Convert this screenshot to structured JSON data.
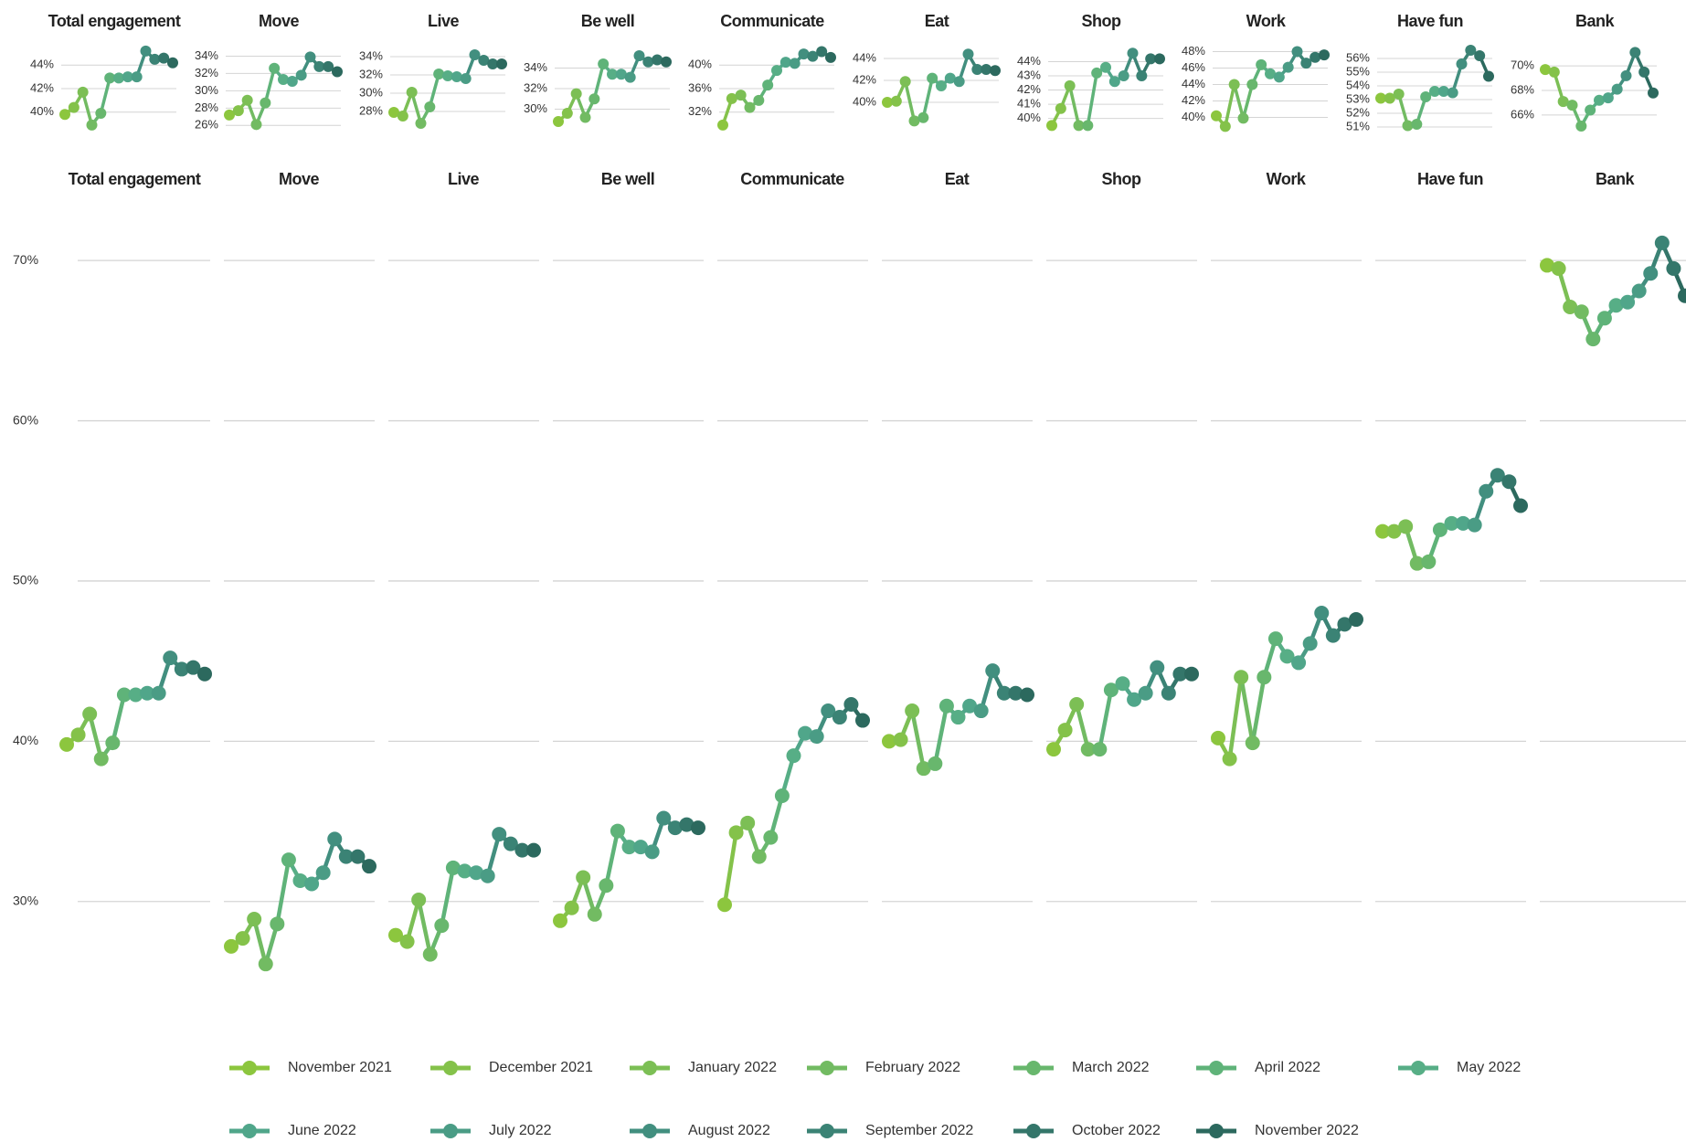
{
  "chart_data": {
    "type": "line",
    "categories": [
      "November 2021",
      "December 2021",
      "January 2022",
      "February 2022",
      "March 2022",
      "April 2022",
      "May 2022",
      "June 2022",
      "July 2022",
      "August 2022",
      "September 2022",
      "October 2022",
      "November 2022"
    ],
    "colors": [
      "#8cc63e",
      "#84c24a",
      "#7cbf55",
      "#72bb62",
      "#68b76d",
      "#5fb379",
      "#57ae86",
      "#50a68a",
      "#4a9c85",
      "#428f7f",
      "#3b8375",
      "#34766a",
      "#2c695e"
    ],
    "ylim": [
      24,
      74
    ],
    "yticks": [
      {
        "value": 30,
        "label": "30%"
      },
      {
        "value": 40,
        "label": "40%"
      },
      {
        "value": 50,
        "label": "50%"
      },
      {
        "value": 60,
        "label": "60%"
      },
      {
        "value": 70,
        "label": "70%"
      }
    ],
    "grid": true,
    "panels": [
      {
        "name": "Total engagement",
        "values": [
          39.8,
          40.4,
          41.7,
          38.9,
          39.9,
          42.9,
          42.9,
          43.0,
          43.0,
          45.2,
          44.5,
          44.6,
          44.2
        ],
        "ylim": [
          38.5,
          45.5
        ],
        "yticks": [
          {
            "value": 40,
            "label": "40%"
          },
          {
            "value": 42,
            "label": "42%"
          },
          {
            "value": 44,
            "label": "44%"
          }
        ]
      },
      {
        "name": "Move",
        "values": [
          27.2,
          27.7,
          28.9,
          26.1,
          28.6,
          32.6,
          31.3,
          31.1,
          31.8,
          33.9,
          32.8,
          32.8,
          32.2
        ],
        "ylim": [
          25.5,
          35
        ],
        "yticks": [
          {
            "value": 26,
            "label": "26%"
          },
          {
            "value": 28,
            "label": "28%"
          },
          {
            "value": 30,
            "label": "30%"
          },
          {
            "value": 32,
            "label": "32%"
          },
          {
            "value": 34,
            "label": "34%"
          }
        ]
      },
      {
        "name": "Live",
        "values": [
          27.9,
          27.5,
          30.1,
          26.7,
          28.5,
          32.1,
          31.9,
          31.8,
          31.6,
          34.2,
          33.6,
          33.2,
          33.2
        ],
        "ylim": [
          26,
          35
        ],
        "yticks": [
          {
            "value": 28,
            "label": "28%"
          },
          {
            "value": 30,
            "label": "30%"
          },
          {
            "value": 32,
            "label": "32%"
          },
          {
            "value": 34,
            "label": "34%"
          }
        ]
      },
      {
        "name": "Be well",
        "values": [
          28.8,
          29.6,
          31.5,
          29.2,
          31.0,
          34.4,
          33.4,
          33.4,
          33.1,
          35.2,
          34.6,
          34.8,
          34.6
        ],
        "ylim": [
          28,
          36
        ],
        "yticks": [
          {
            "value": 30,
            "label": "30%"
          },
          {
            "value": 32,
            "label": "32%"
          },
          {
            "value": 34,
            "label": "34%"
          }
        ]
      },
      {
        "name": "Communicate",
        "values": [
          29.8,
          34.3,
          34.9,
          32.8,
          34.0,
          36.6,
          39.1,
          40.5,
          40.3,
          41.9,
          41.5,
          42.3,
          41.3
        ],
        "ylim": [
          29,
          43
        ],
        "yticks": [
          {
            "value": 32,
            "label": "32%"
          },
          {
            "value": 36,
            "label": "36%"
          },
          {
            "value": 40,
            "label": "40%"
          }
        ]
      },
      {
        "name": "Eat",
        "values": [
          40.0,
          40.1,
          41.9,
          38.3,
          38.6,
          42.2,
          41.5,
          42.2,
          41.9,
          44.4,
          43.0,
          43.0,
          42.9
        ],
        "ylim": [
          37.5,
          45
        ],
        "yticks": [
          {
            "value": 40,
            "label": "40%"
          },
          {
            "value": 42,
            "label": "42%"
          },
          {
            "value": 44,
            "label": "44%"
          }
        ]
      },
      {
        "name": "Shop",
        "values": [
          39.5,
          40.7,
          42.3,
          39.5,
          39.5,
          43.2,
          43.6,
          42.6,
          43.0,
          44.6,
          43.0,
          44.2,
          44.2
        ],
        "ylim": [
          39.2,
          45
        ],
        "yticks": [
          {
            "value": 40,
            "label": "40%"
          },
          {
            "value": 41,
            "label": "41%"
          },
          {
            "value": 42,
            "label": "42%"
          },
          {
            "value": 43,
            "label": "43%"
          },
          {
            "value": 44,
            "label": "44%"
          }
        ]
      },
      {
        "name": "Work",
        "values": [
          40.2,
          38.9,
          44.0,
          39.9,
          44.0,
          46.4,
          45.3,
          44.9,
          46.1,
          48.0,
          46.6,
          47.3,
          47.6
        ],
        "ylim": [
          38.5,
          48.5
        ],
        "yticks": [
          {
            "value": 40,
            "label": "40%"
          },
          {
            "value": 42,
            "label": "42%"
          },
          {
            "value": 44,
            "label": "44%"
          },
          {
            "value": 46,
            "label": "46%"
          },
          {
            "value": 48,
            "label": "48%"
          }
        ]
      },
      {
        "name": "Have fun",
        "values": [
          53.1,
          53.1,
          53.4,
          51.1,
          51.2,
          53.2,
          53.6,
          53.6,
          53.5,
          55.6,
          56.6,
          56.2,
          54.7
        ],
        "ylim": [
          50.8,
          56.8
        ],
        "yticks": [
          {
            "value": 51,
            "label": "51%"
          },
          {
            "value": 52,
            "label": "52%"
          },
          {
            "value": 53,
            "label": "53%"
          },
          {
            "value": 54,
            "label": "54%"
          },
          {
            "value": 55,
            "label": "55%"
          },
          {
            "value": 56,
            "label": "56%"
          }
        ]
      },
      {
        "name": "Bank",
        "values": [
          69.7,
          69.5,
          67.1,
          66.8,
          65.1,
          66.4,
          67.2,
          67.4,
          68.1,
          69.2,
          71.1,
          69.5,
          67.8
        ],
        "ylim": [
          64.8,
          71.5
        ],
        "yticks": [
          {
            "value": 66,
            "label": "66%"
          },
          {
            "value": 68,
            "label": "68%"
          },
          {
            "value": 70,
            "label": "70%"
          }
        ]
      }
    ]
  }
}
